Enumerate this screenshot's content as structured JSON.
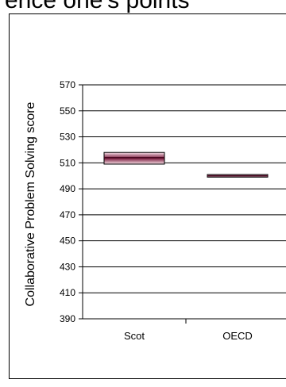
{
  "page_title": "ence one's points",
  "chart_data": {
    "type": "box",
    "ylabel": "Collaborative Problem Solving score",
    "ylim": [
      390,
      570
    ],
    "yticks": [
      390,
      410,
      430,
      450,
      470,
      490,
      510,
      530,
      550,
      570
    ],
    "categories": [
      "Scot",
      "OECD"
    ],
    "ranges": [
      {
        "category": "Scot",
        "low": 509,
        "mid": 514,
        "high": 518
      },
      {
        "category": "OECD",
        "low": 499,
        "mid": 500,
        "high": 501
      }
    ],
    "grid": true
  }
}
